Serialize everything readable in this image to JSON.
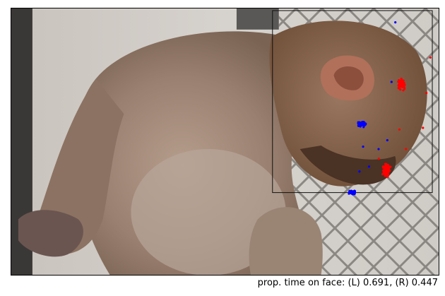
{
  "caption": "prop. time on face: (L) 0.691, (R) 0.447",
  "gaze_colors": {
    "left_eye": "#ff0000",
    "right_eye": "#0000ff"
  },
  "proportion_on_face": {
    "left": 0.691,
    "right": 0.447
  }
}
